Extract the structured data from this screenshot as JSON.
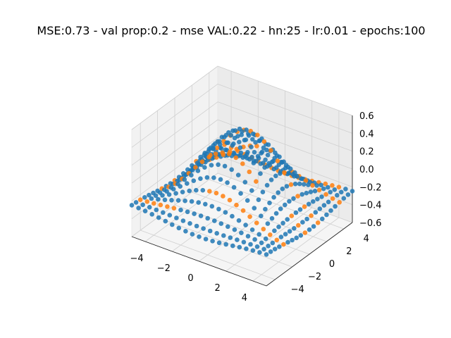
{
  "chart_data": {
    "type": "scatter",
    "projection": "3d",
    "title": "MSE:0.73 - val prop:0.2 - mse VAL:0.22 - hn:25 - lr:0.01 - epochs:100",
    "xlabel": "",
    "ylabel": "",
    "zlabel": "",
    "xlim": [
      -5,
      5
    ],
    "ylim": [
      -5,
      5
    ],
    "zlim": [
      -0.6,
      0.6
    ],
    "x_ticks": [
      "−4",
      "−2",
      "0",
      "2",
      "4"
    ],
    "y_ticks": [
      "−4",
      "−2",
      "0",
      "2",
      "4"
    ],
    "z_ticks": [
      "−0.6",
      "−0.4",
      "−0.2",
      "0.0",
      "0.2",
      "0.4",
      "0.6"
    ],
    "grid": true,
    "surface_shape": "z ≈ 0.55·sin(x)/x·sin(y)/y − 0.35 style dome centered at (0,0)",
    "grid_values": {
      "x": [
        -5,
        -4.5,
        -4,
        -3.5,
        -3,
        -2.5,
        -2,
        -1.5,
        -1,
        -0.5,
        0,
        0.5,
        1,
        1.5,
        2,
        2.5,
        3,
        3.5,
        4,
        4.5,
        5
      ],
      "y": [
        -5,
        -4.5,
        -4,
        -3.5,
        -3,
        -2.5,
        -2,
        -1.5,
        -1,
        -0.5,
        0,
        0.5,
        1,
        1.5,
        2,
        2.5,
        3,
        3.5,
        4,
        4.5,
        5
      ]
    },
    "series": [
      {
        "color": "#1f77b4",
        "role": "train"
      },
      {
        "color": "#ff7f0e",
        "role": "validation",
        "fraction": 0.2
      }
    ]
  }
}
